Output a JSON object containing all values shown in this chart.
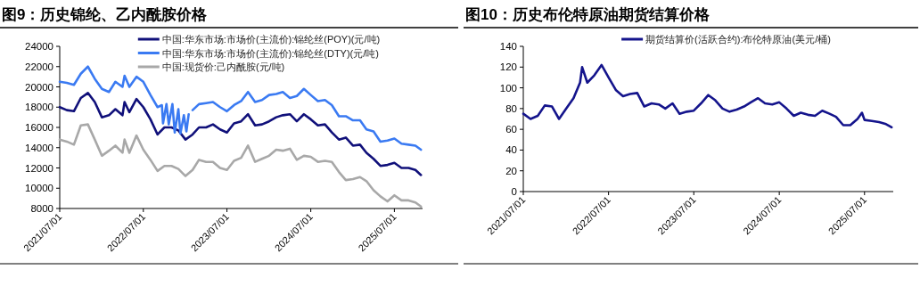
{
  "chart_data": [
    {
      "type": "line",
      "title": "图9：历史锦纶、乙内酰胺价格",
      "legend": "top",
      "xlim": [
        "2021-07-01",
        "2025-11-01"
      ],
      "ylim": [
        8000,
        24000
      ],
      "xticks": [
        {
          "value": "2021-07-01",
          "label": "2021/07/01"
        },
        {
          "value": "2022-07-01",
          "label": "2022/07/01"
        },
        {
          "value": "2023-07-01",
          "label": "2023/07/01"
        },
        {
          "value": "2024-07-01",
          "label": "2024/07/01"
        },
        {
          "value": "2025-07-01",
          "label": "2025/07/01"
        }
      ],
      "yticks": [
        8000,
        10000,
        12000,
        14000,
        16000,
        18000,
        20000,
        22000,
        24000
      ],
      "series": [
        {
          "name": "中国:华东市场:市场价(主流价):锦纶丝(POY)(元/吨)",
          "color": "#10107a",
          "x": [
            "2021-07",
            "2021-08",
            "2021-09",
            "2021-10",
            "2021-11",
            "2021-12",
            "2022-01",
            "2022-02",
            "2022-03",
            "2022-04",
            "2022-04-10",
            "2022-05",
            "2022-06",
            "2022-07",
            "2022-08",
            "2022-09",
            "2022-10",
            "2022-11",
            "2022-12",
            "2023-01",
            "2023-02",
            "2023-03",
            "2023-04",
            "2023-05",
            "2023-06",
            "2023-07",
            "2023-08",
            "2023-09",
            "2023-10",
            "2023-11",
            "2023-12",
            "2024-01",
            "2024-02",
            "2024-03",
            "2024-04",
            "2024-05",
            "2024-06",
            "2024-07",
            "2024-08",
            "2024-09",
            "2024-10",
            "2024-11",
            "2024-12",
            "2025-01",
            "2025-02",
            "2025-03",
            "2025-04",
            "2025-05",
            "2025-06",
            "2025-07",
            "2025-08",
            "2025-09",
            "2025-10",
            "2025-10-25"
          ],
          "values": [
            18000,
            17700,
            17600,
            18900,
            19400,
            18500,
            17000,
            17200,
            17800,
            17200,
            18500,
            17500,
            18800,
            18000,
            16800,
            15300,
            16000,
            16000,
            15700,
            14800,
            15300,
            16000,
            16000,
            16300,
            15800,
            15500,
            16400,
            16600,
            17300,
            16200,
            16300,
            16600,
            17000,
            17200,
            17300,
            16600,
            17300,
            16800,
            16200,
            16300,
            15500,
            14800,
            15000,
            14200,
            14300,
            13500,
            12900,
            12200,
            12300,
            12500,
            12000,
            12000,
            11800,
            11300
          ]
        },
        {
          "name": "中国:华东市场:市场价(主流价):锦纶丝(DTY)(元/吨)",
          "color": "#3a7af2",
          "x": [
            "2021-07",
            "2021-08",
            "2021-09",
            "2021-10",
            "2021-11",
            "2021-12",
            "2022-01",
            "2022-02",
            "2022-03",
            "2022-04",
            "2022-04-10",
            "2022-05",
            "2022-06",
            "2022-07",
            "2022-08",
            "2022-09",
            "2022-09-20",
            "2022-09-25",
            "2022-10-10",
            "2022-10-20",
            "2022-11-05",
            "2022-11-15",
            "2022-12-01",
            "2022-12-10",
            "2022-12-25",
            "2023-01-05",
            "2023-01-15",
            "2023-01-20",
            "2023-02-01",
            "2023-03",
            "2023-04",
            "2023-05",
            "2023-06",
            "2023-07",
            "2023-08",
            "2023-09",
            "2023-10",
            "2023-11",
            "2023-12",
            "2024-01",
            "2024-02",
            "2024-03",
            "2024-04",
            "2024-05",
            "2024-06",
            "2024-07",
            "2024-08",
            "2024-09",
            "2024-10",
            "2024-11",
            "2024-12",
            "2025-01",
            "2025-02",
            "2025-03",
            "2025-04",
            "2025-05",
            "2025-06",
            "2025-07",
            "2025-08",
            "2025-09",
            "2025-10",
            "2025-10-25"
          ],
          "values": [
            20500,
            20400,
            20200,
            21300,
            22000,
            20800,
            19800,
            19500,
            20500,
            20000,
            21100,
            20000,
            21000,
            20500,
            19200,
            18000,
            18200,
            16400,
            18300,
            16300,
            18300,
            15500,
            17800,
            15400,
            17200,
            15600,
            17300,
            null,
            17700,
            18300,
            18400,
            18500,
            18000,
            17600,
            18200,
            18600,
            19500,
            18500,
            18700,
            19200,
            19300,
            19500,
            18900,
            19100,
            19800,
            19200,
            18600,
            18700,
            18200,
            17100,
            17100,
            16700,
            16700,
            15800,
            15600,
            14600,
            14700,
            14900,
            14400,
            14300,
            14200,
            13800
          ]
        },
        {
          "name": "中国:现货价:己内酰胺(元/吨)",
          "color": "#a8a8a8",
          "x": [
            "2021-07",
            "2021-08",
            "2021-09",
            "2021-10",
            "2021-11",
            "2021-12",
            "2022-01",
            "2022-02",
            "2022-03",
            "2022-04",
            "2022-04-10",
            "2022-05",
            "2022-06",
            "2022-07",
            "2022-08",
            "2022-09",
            "2022-10",
            "2022-11",
            "2022-12",
            "2023-01",
            "2023-02",
            "2023-03",
            "2023-04",
            "2023-05",
            "2023-06",
            "2023-07",
            "2023-08",
            "2023-09",
            "2023-10",
            "2023-11",
            "2023-12",
            "2024-01",
            "2024-02",
            "2024-03",
            "2024-04",
            "2024-05",
            "2024-06",
            "2024-07",
            "2024-08",
            "2024-09",
            "2024-10",
            "2024-11",
            "2024-12",
            "2025-01",
            "2025-02",
            "2025-03",
            "2025-04",
            "2025-05",
            "2025-06",
            "2025-07",
            "2025-08",
            "2025-09",
            "2025-10",
            "2025-10-25"
          ],
          "values": [
            14800,
            14600,
            14300,
            16200,
            16300,
            14800,
            13200,
            13700,
            14200,
            13500,
            14800,
            13500,
            15200,
            13800,
            12800,
            11700,
            12200,
            12200,
            11900,
            11200,
            11800,
            12800,
            12600,
            12600,
            12000,
            11800,
            12700,
            13000,
            14200,
            12600,
            12900,
            13200,
            13800,
            13700,
            13900,
            12800,
            13200,
            13100,
            12600,
            12700,
            12600,
            11600,
            10800,
            10900,
            11100,
            10700,
            9800,
            9200,
            8700,
            9300,
            8800,
            8800,
            8600,
            8200
          ]
        }
      ]
    },
    {
      "type": "line",
      "title": "图10：历史布伦特原油期货结算价格",
      "legend": "top",
      "xlim": [
        "2021-07-01",
        "2025-11-01"
      ],
      "ylim": [
        0,
        140
      ],
      "xticks": [
        {
          "value": "2021-07-01",
          "label": "2021/07/01"
        },
        {
          "value": "2022-07-01",
          "label": "2022/07/01"
        },
        {
          "value": "2023-07-01",
          "label": "2023/07/01"
        },
        {
          "value": "2024-07-01",
          "label": "2024/07/01"
        },
        {
          "value": "2025-07-01",
          "label": "2025/07/01"
        }
      ],
      "yticks": [
        0,
        20,
        40,
        60,
        80,
        100,
        120,
        140
      ],
      "series": [
        {
          "name": "期货结算价(活跃合约):布伦特原油(美元/桶)",
          "color": "#14148c",
          "x": [
            "2021-07",
            "2021-08",
            "2021-09",
            "2021-10",
            "2021-11",
            "2021-12",
            "2022-01",
            "2022-02",
            "2022-03",
            "2022-03-10",
            "2022-04",
            "2022-05",
            "2022-06",
            "2022-07",
            "2022-08",
            "2022-09",
            "2022-10",
            "2022-11",
            "2022-12",
            "2023-01",
            "2023-02",
            "2023-03",
            "2023-04",
            "2023-05",
            "2023-06",
            "2023-07",
            "2023-08",
            "2023-09",
            "2023-10",
            "2023-11",
            "2023-12",
            "2024-01",
            "2024-02",
            "2024-03",
            "2024-04",
            "2024-05",
            "2024-06",
            "2024-07",
            "2024-08",
            "2024-09",
            "2024-10",
            "2024-11",
            "2024-12",
            "2025-01",
            "2025-02",
            "2025-03",
            "2025-04",
            "2025-05",
            "2025-06",
            "2025-06-20",
            "2025-07",
            "2025-08",
            "2025-09",
            "2025-10",
            "2025-10-25"
          ],
          "values": [
            75,
            70,
            73,
            83,
            82,
            70,
            80,
            90,
            105,
            120,
            105,
            112,
            122,
            110,
            98,
            92,
            94,
            95,
            82,
            85,
            84,
            80,
            85,
            75,
            77,
            78,
            85,
            93,
            88,
            80,
            77,
            79,
            82,
            86,
            90,
            85,
            84,
            86,
            80,
            73,
            76,
            74,
            73,
            78,
            75,
            72,
            64,
            64,
            70,
            76,
            69,
            68,
            67,
            65,
            62
          ]
        }
      ]
    }
  ]
}
